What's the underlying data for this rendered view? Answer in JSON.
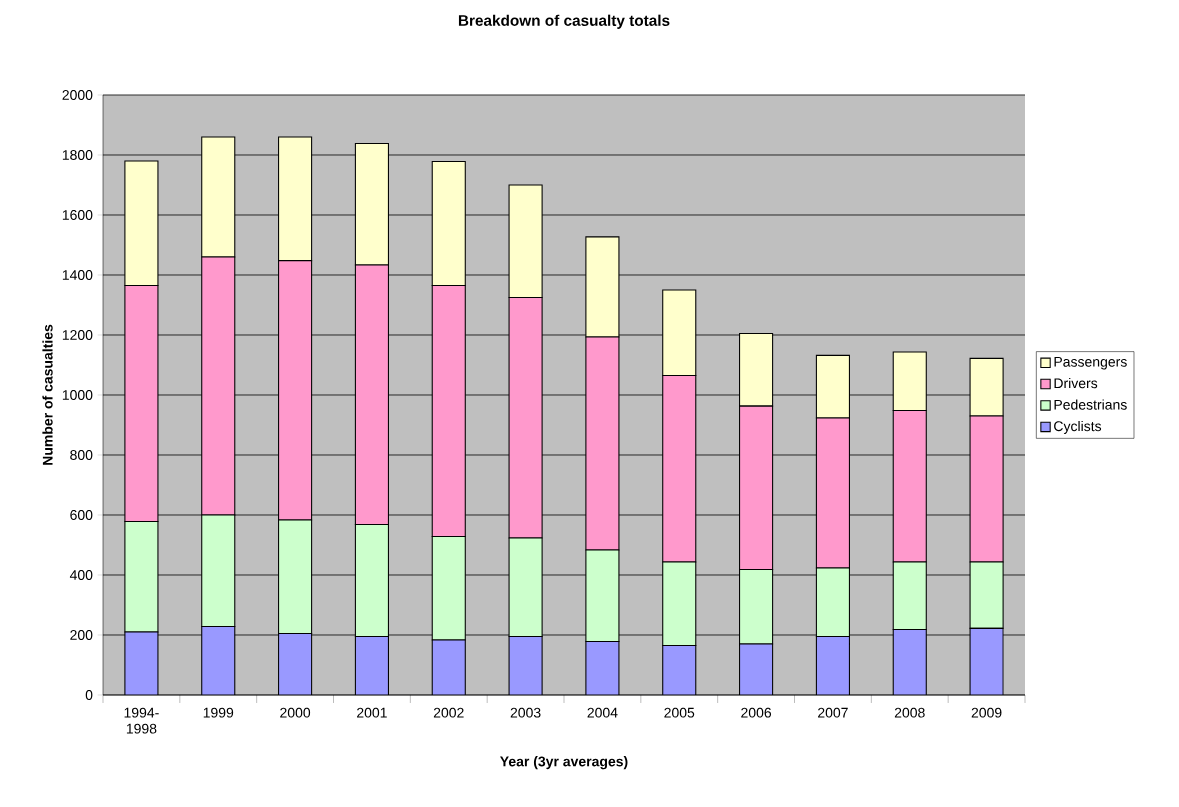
{
  "chart_data": {
    "type": "bar",
    "title": "Breakdown of casualty totals",
    "xlabel": "Year (3yr averages)",
    "ylabel": "Number of casualties",
    "categories": [
      "1994-1998",
      "1999",
      "2000",
      "2001",
      "2002",
      "2003",
      "2004",
      "2005",
      "2006",
      "2007",
      "2008",
      "2009"
    ],
    "stacked": true,
    "series": [
      {
        "name": "Cyclists",
        "color": "#9999ff",
        "values": [
          210,
          228,
          205,
          195,
          183,
          195,
          178,
          165,
          170,
          195,
          218,
          222
        ]
      },
      {
        "name": "Pedestrians",
        "color": "#ccffcc",
        "values": [
          368,
          372,
          378,
          373,
          345,
          328,
          305,
          278,
          248,
          228,
          225,
          221
        ]
      },
      {
        "name": "Drivers",
        "color": "#ff99cc",
        "values": [
          787,
          860,
          865,
          865,
          837,
          802,
          710,
          622,
          545,
          500,
          505,
          487
        ]
      },
      {
        "name": "Passengers",
        "color": "#ffffcc",
        "values": [
          415,
          400,
          412,
          405,
          413,
          375,
          334,
          285,
          242,
          209,
          195,
          192
        ]
      }
    ],
    "ylim": [
      0,
      2000
    ],
    "yticks": [
      0,
      200,
      400,
      600,
      800,
      1000,
      1200,
      1400,
      1600,
      1800,
      2000
    ],
    "grid": "y",
    "legend": "right"
  }
}
